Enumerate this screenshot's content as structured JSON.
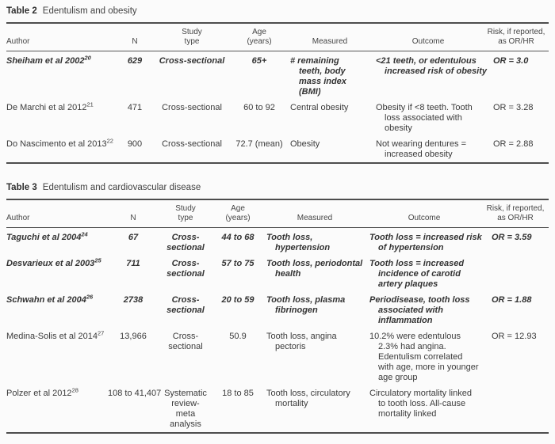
{
  "colors": {
    "background": "#fbfbfb",
    "text": "#3b3b3b",
    "rule": "#4d4d4d"
  },
  "tables": [
    {
      "label": "Table 2",
      "caption": "Edentulism and obesity",
      "columns": {
        "author": "Author",
        "n": "N",
        "study": "Study\ntype",
        "age": "Age\n(years)",
        "measured": "Measured",
        "outcome": "Outcome",
        "risk": "Risk, if reported,\nas OR/HR"
      },
      "rows": [
        {
          "author": "Sheiham et al 2002",
          "ref": "20",
          "n": "629",
          "study": "Cross-sectional",
          "age": "65+",
          "measured": "# remaining\nteeth, body\nmass index\n(BMI)",
          "outcome": "<21 teeth, or edentulous\nincreased risk of obesity",
          "risk": "OR = 3.0",
          "emphasis": true
        },
        {
          "author": "De Marchi et al 2012",
          "ref": "21",
          "n": "471",
          "study": "Cross-sectional",
          "age": "60 to 92",
          "measured": "Central obesity",
          "outcome": "Obesity if <8 teeth. Tooth\nloss associated with\nobesity",
          "risk": "OR = 3.28",
          "emphasis": false
        },
        {
          "author": "Do Nascimento et al 2013",
          "ref": "22",
          "n": "900",
          "study": "Cross-sectional",
          "age": "72.7 (mean)",
          "measured": "Obesity",
          "outcome": "Not wearing dentures =\nincreased obesity",
          "risk": "OR = 2.88",
          "emphasis": false
        }
      ]
    },
    {
      "label": "Table 3",
      "caption": "Edentulism and cardiovascular disease",
      "columns": {
        "author": "Author",
        "n": "N",
        "study": "Study\ntype",
        "age": "Age\n(years)",
        "measured": "Measured",
        "outcome": "Outcome",
        "risk": "Risk, if reported,\nas OR/HR"
      },
      "rows": [
        {
          "author": "Taguchi et al 2004",
          "ref": "24",
          "n": "67",
          "study": "Cross-\nsectional",
          "age": "44 to 68",
          "measured": "Tooth loss,\nhypertension",
          "outcome": "Tooth loss = increased risk\nof hypertension",
          "risk": "OR = 3.59",
          "emphasis": true
        },
        {
          "author": "Desvarieux et al 2003",
          "ref": "25",
          "n": "711",
          "study": "Cross-\nsectional",
          "age": "57 to 75",
          "measured": "Tooth loss, periodontal\nhealth",
          "outcome": "Tooth loss = increased\nincidence of carotid\nartery plaques",
          "risk": "",
          "emphasis": true
        },
        {
          "author": "Schwahn et al 2004",
          "ref": "26",
          "n": "2738",
          "study": "Cross-\nsectional",
          "age": "20 to 59",
          "measured": "Tooth loss, plasma\nfibrinogen",
          "outcome": "Periodisease, tooth loss\nassociated with\ninflammation",
          "risk": "OR = 1.88",
          "emphasis": true
        },
        {
          "author": "Medina-Solis et al 2014",
          "ref": "27",
          "n": "13,966",
          "study": "Cross-\nsectional",
          "age": "50.9",
          "measured": "Tooth loss, angina\npectoris",
          "outcome": "10.2% were edentulous\n2.3% had angina.\nEdentulism correlated\nwith age, more in younger\nage group",
          "risk": "OR = 12.93",
          "emphasis": false
        },
        {
          "author": "Polzer et al 2012",
          "ref": "28",
          "n": "108 to 41,407",
          "study": "Systematic\nreview-\nmeta\nanalysis",
          "age": "18 to 85",
          "measured": "Tooth loss, circulatory\nmortality",
          "outcome": "Circulatory mortality linked\nto tooth loss. All-cause\nmortality linked",
          "risk": "",
          "emphasis": false
        }
      ]
    }
  ]
}
